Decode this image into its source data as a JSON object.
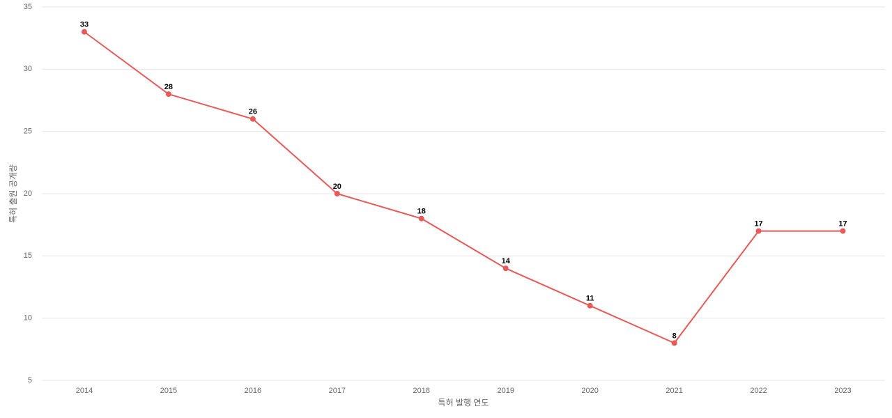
{
  "chart_data": {
    "type": "line",
    "x_label": "특허 발행 연도",
    "y_label": "특허 출원 공개량",
    "categories": [
      "2014",
      "2015",
      "2016",
      "2017",
      "2018",
      "2019",
      "2020",
      "2021",
      "2022",
      "2023"
    ],
    "values": [
      33,
      28,
      26,
      20,
      18,
      14,
      11,
      8,
      17,
      17
    ],
    "color": "#e85a58",
    "ylim": [
      5,
      35
    ],
    "yticks": [
      5,
      10,
      15,
      20,
      25,
      30,
      35
    ],
    "grid": true
  }
}
